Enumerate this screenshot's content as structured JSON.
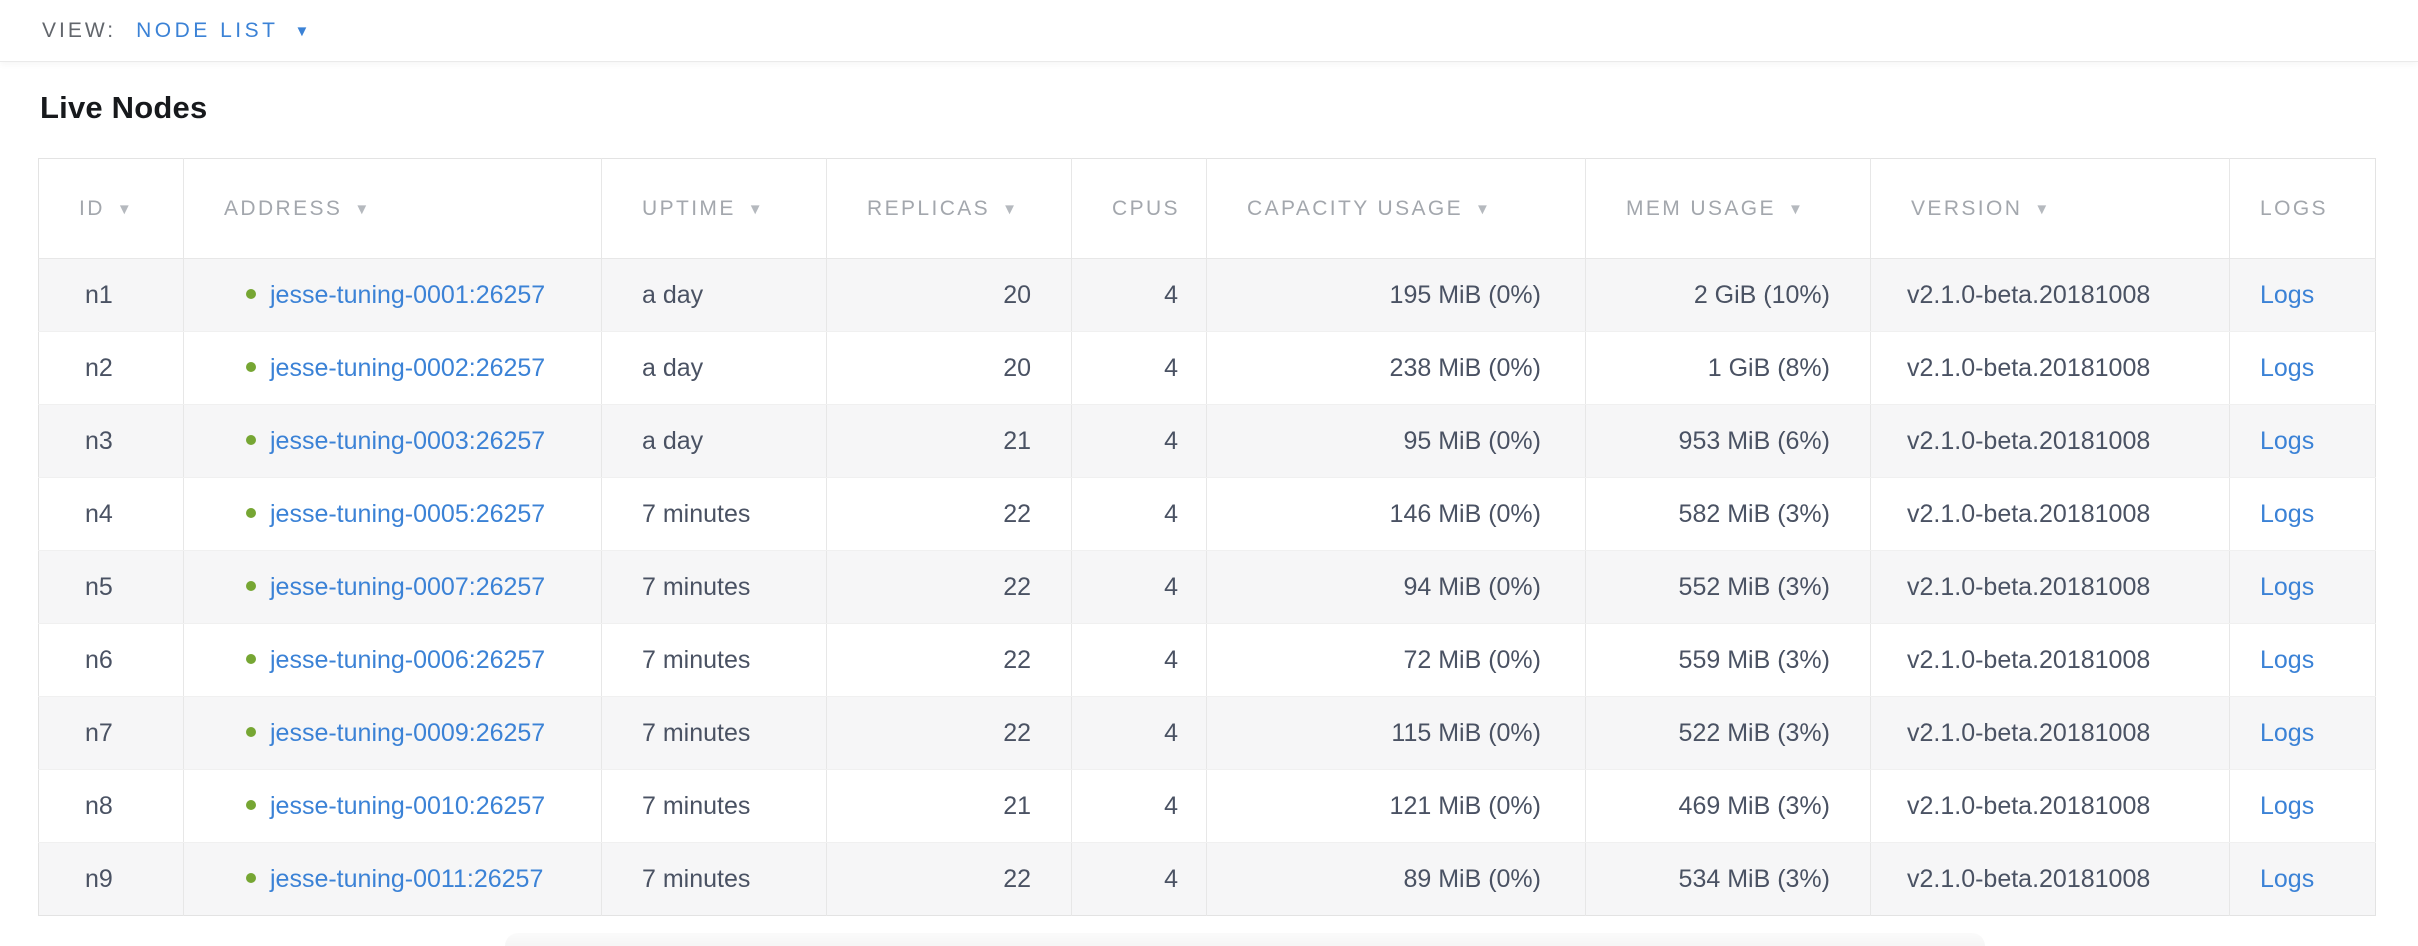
{
  "view_bar": {
    "label": "VIEW:",
    "selected": "NODE LIST",
    "caret": "▼"
  },
  "page": {
    "title": "Live Nodes"
  },
  "table": {
    "columns": [
      {
        "key": "id",
        "label": "ID",
        "sortable": true
      },
      {
        "key": "address",
        "label": "ADDRESS",
        "sortable": true
      },
      {
        "key": "uptime",
        "label": "UPTIME",
        "sortable": true
      },
      {
        "key": "replicas",
        "label": "REPLICAS",
        "sortable": true
      },
      {
        "key": "cpus",
        "label": "CPUS",
        "sortable": false
      },
      {
        "key": "capacity",
        "label": "CAPACITY USAGE",
        "sortable": true
      },
      {
        "key": "mem",
        "label": "MEM USAGE",
        "sortable": true
      },
      {
        "key": "version",
        "label": "VERSION",
        "sortable": true
      },
      {
        "key": "logs",
        "label": "LOGS",
        "sortable": false
      }
    ],
    "sort_icon": "▼",
    "logs_label": "Logs",
    "rows": [
      {
        "id": "n1",
        "address": "jesse-tuning-0001:26257",
        "uptime": "a day",
        "replicas": "20",
        "cpus": "4",
        "capacity": "195 MiB (0%)",
        "mem": "2 GiB (10%)",
        "version": "v2.1.0-beta.20181008",
        "logs": "Logs"
      },
      {
        "id": "n2",
        "address": "jesse-tuning-0002:26257",
        "uptime": "a day",
        "replicas": "20",
        "cpus": "4",
        "capacity": "238 MiB (0%)",
        "mem": "1 GiB (8%)",
        "version": "v2.1.0-beta.20181008",
        "logs": "Logs"
      },
      {
        "id": "n3",
        "address": "jesse-tuning-0003:26257",
        "uptime": "a day",
        "replicas": "21",
        "cpus": "4",
        "capacity": "95 MiB (0%)",
        "mem": "953 MiB (6%)",
        "version": "v2.1.0-beta.20181008",
        "logs": "Logs"
      },
      {
        "id": "n4",
        "address": "jesse-tuning-0005:26257",
        "uptime": "7 minutes",
        "replicas": "22",
        "cpus": "4",
        "capacity": "146 MiB (0%)",
        "mem": "582 MiB (3%)",
        "version": "v2.1.0-beta.20181008",
        "logs": "Logs"
      },
      {
        "id": "n5",
        "address": "jesse-tuning-0007:26257",
        "uptime": "7 minutes",
        "replicas": "22",
        "cpus": "4",
        "capacity": "94 MiB (0%)",
        "mem": "552 MiB (3%)",
        "version": "v2.1.0-beta.20181008",
        "logs": "Logs"
      },
      {
        "id": "n6",
        "address": "jesse-tuning-0006:26257",
        "uptime": "7 minutes",
        "replicas": "22",
        "cpus": "4",
        "capacity": "72 MiB (0%)",
        "mem": "559 MiB (3%)",
        "version": "v2.1.0-beta.20181008",
        "logs": "Logs"
      },
      {
        "id": "n7",
        "address": "jesse-tuning-0009:26257",
        "uptime": "7 minutes",
        "replicas": "22",
        "cpus": "4",
        "capacity": "115 MiB (0%)",
        "mem": "522 MiB (3%)",
        "version": "v2.1.0-beta.20181008",
        "logs": "Logs"
      },
      {
        "id": "n8",
        "address": "jesse-tuning-0010:26257",
        "uptime": "7 minutes",
        "replicas": "21",
        "cpus": "4",
        "capacity": "121 MiB (0%)",
        "mem": "469 MiB (3%)",
        "version": "v2.1.0-beta.20181008",
        "logs": "Logs"
      },
      {
        "id": "n9",
        "address": "jesse-tuning-0011:26257",
        "uptime": "7 minutes",
        "replicas": "22",
        "cpus": "4",
        "capacity": "89 MiB (0%)",
        "mem": "534 MiB (3%)",
        "version": "v2.1.0-beta.20181008",
        "logs": "Logs"
      }
    ]
  },
  "colors": {
    "accent_link": "#3b82d6",
    "status_live": "#76a633",
    "header_text": "#a3a7ad",
    "cell_text": "#4a5263",
    "zebra_row": "#f6f6f7",
    "border": "#e7e7e7"
  }
}
